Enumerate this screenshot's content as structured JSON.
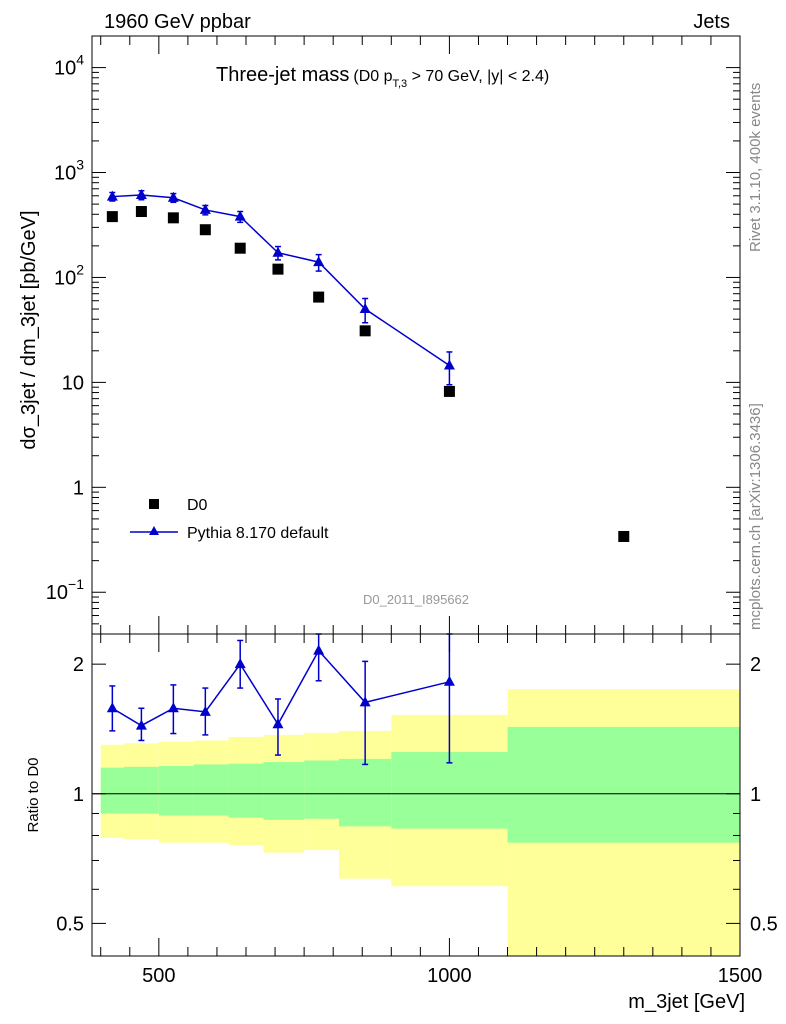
{
  "header": {
    "left": "1960 GeV ppbar",
    "right": "Jets"
  },
  "side_text": {
    "rivet": "Rivet 3.1.10,  400k events",
    "mcplots": "mcplots.cern.ch [arXiv:1306.3436]"
  },
  "analysis_id": "D0_2011_I895662",
  "colors": {
    "data": "#000000",
    "mc": "#0000cc",
    "band_inner": "#99ff99",
    "band_outer": "#ffff99"
  },
  "chart_data": [
    {
      "type": "scatter",
      "title": "Three-jet mass",
      "title_note": {
        "pre": "(D0 p",
        "sub": "T,3",
        "post": " > 70 GeV, |y| < 2.4)"
      },
      "xlabel": "m_3jet [GeV]",
      "ylabel": "dσ_3jet / dm_3jet [pb/GeV]",
      "yscale": "log",
      "xlim": [
        385,
        1500
      ],
      "ylim": [
        0.04,
        20000
      ],
      "yticks": [
        {
          "value": 10000,
          "base": "10",
          "exp": "4"
        },
        {
          "value": 1000,
          "base": "10",
          "exp": "3"
        },
        {
          "value": 100,
          "base": "10",
          "exp": "2"
        },
        {
          "value": 10,
          "base": "10",
          "exp": ""
        },
        {
          "value": 1,
          "base": "1",
          "exp": ""
        },
        {
          "value": 0.1,
          "base": "10",
          "exp": "−1"
        }
      ],
      "legend_position": "top-left (lower half of panel)",
      "series": [
        {
          "name": "D0",
          "marker": "square",
          "x": [
            420,
            470,
            525,
            580,
            640,
            705,
            775,
            855,
            1000,
            1300
          ],
          "y": [
            380,
            425,
            370,
            285,
            190,
            120,
            65,
            31,
            8.2,
            0.34
          ],
          "yerr": [
            0,
            0,
            0,
            0,
            0,
            0,
            0,
            0,
            0,
            0
          ]
        },
        {
          "name": "Pythia 8.170 default",
          "marker": "triangle-line",
          "x": [
            420,
            470,
            525,
            580,
            640,
            705,
            775,
            855,
            1000
          ],
          "y": [
            590,
            610,
            575,
            440,
            380,
            172,
            140,
            50,
            14.5
          ],
          "yerr": [
            55,
            60,
            55,
            45,
            45,
            25,
            25,
            13,
            5
          ]
        }
      ]
    },
    {
      "type": "scatter",
      "ylabel": "Ratio to D0",
      "yscale": "log",
      "xlim": [
        385,
        1500
      ],
      "ylim": [
        0.42,
        2.35
      ],
      "yticks": [
        0.5,
        1,
        2
      ],
      "xticks": [
        500,
        1000,
        1500
      ],
      "reference_line": 1,
      "bands": {
        "edges": [
          400,
          440,
          500,
          560,
          620,
          680,
          750,
          810,
          900,
          1100,
          1500
        ],
        "inner_low": [
          0.9,
          0.9,
          0.89,
          0.89,
          0.88,
          0.87,
          0.875,
          0.84,
          0.83,
          0.77
        ],
        "inner_high": [
          1.15,
          1.155,
          1.16,
          1.17,
          1.175,
          1.185,
          1.195,
          1.205,
          1.25,
          1.43
        ],
        "outer_low": [
          0.79,
          0.785,
          0.77,
          0.77,
          0.76,
          0.73,
          0.74,
          0.635,
          0.61,
          0.42
        ],
        "outer_high": [
          1.3,
          1.31,
          1.32,
          1.33,
          1.355,
          1.37,
          1.385,
          1.4,
          1.525,
          1.75
        ]
      },
      "series": [
        {
          "name": "Pythia 8.170 default",
          "x": [
            420,
            470,
            525,
            580,
            640,
            705,
            775,
            855,
            1000
          ],
          "y": [
            1.58,
            1.44,
            1.58,
            1.55,
            2.0,
            1.45,
            2.15,
            1.63,
            1.82
          ],
          "ylow": [
            1.4,
            1.33,
            1.38,
            1.37,
            1.76,
            1.23,
            1.83,
            1.17,
            1.18
          ],
          "yhigh": [
            1.78,
            1.58,
            1.79,
            1.76,
            2.27,
            1.66,
            2.35,
            2.03,
            2.35
          ]
        }
      ]
    }
  ]
}
